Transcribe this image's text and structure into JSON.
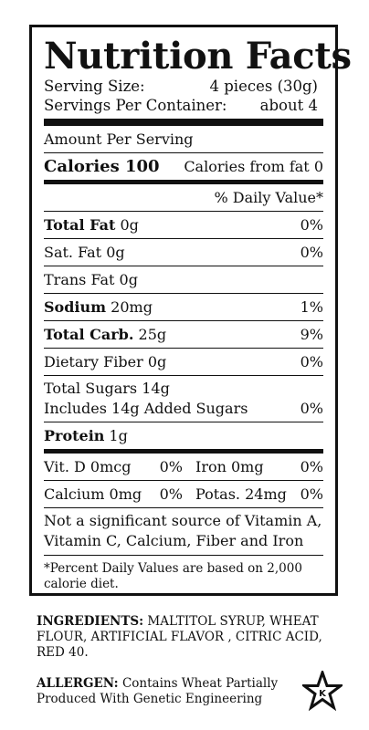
{
  "label": {
    "title": "Nutrition Facts",
    "serving_size_label": "Serving Size:",
    "serving_size_value": "4 pieces (30g)",
    "servings_per_container_label": "Servings Per Container:",
    "servings_per_container_value": "about 4",
    "amount_per_serving": "Amount Per Serving",
    "calories_label": "Calories 100",
    "calories_from_fat": "Calories from fat 0",
    "daily_value_header": "% Daily Value*",
    "nutrients": [
      {
        "name": "Total Fat",
        "amount": "0g",
        "dv": "0%",
        "bold": true
      },
      {
        "name": "Sat. Fat",
        "amount": "0g",
        "dv": "0%",
        "bold": false
      },
      {
        "name": "Trans Fat",
        "amount": "0g",
        "dv": "",
        "bold": false
      },
      {
        "name": "Sodium",
        "amount": "20mg",
        "dv": "1%",
        "bold": true
      },
      {
        "name": "Total Carb.",
        "amount": "25g",
        "dv": "9%",
        "bold": true
      },
      {
        "name": "Dietary Fiber",
        "amount": "0g",
        "dv": "0%",
        "bold": false
      }
    ],
    "total_sugars": "Total Sugars 14g",
    "added_sugars": "Includes 14g Added Sugars",
    "added_sugars_dv": "0%",
    "protein_label": "Protein",
    "protein_amount": "1g",
    "vitamins": [
      {
        "name": "Vit. D 0mcg",
        "dv": "0%"
      },
      {
        "name": "Iron 0mg",
        "dv": "0%"
      },
      {
        "name": "Calcium 0mg",
        "dv": "0%"
      },
      {
        "name": "Potas. 24mg",
        "dv": "0%"
      }
    ],
    "not_significant": "Not a significant source of Vitamin A, Vitamin C, Calcium, Fiber and Iron",
    "footnote": "*Percent Daily Values are based on 2,000 calorie diet."
  },
  "ingredients": {
    "label": "INGREDIENTS:",
    "text": "MALTITOL SYRUP, WHEAT FLOUR, ARTIFICIAL FLAVOR , CITRIC ACID, RED 40."
  },
  "allergen": {
    "label": "ALLERGEN:",
    "text": "Contains Wheat Partially Produced With Genetic Engineering"
  },
  "kosher_symbol": {
    "icon": "kosher-star-icon",
    "letter": "K"
  }
}
